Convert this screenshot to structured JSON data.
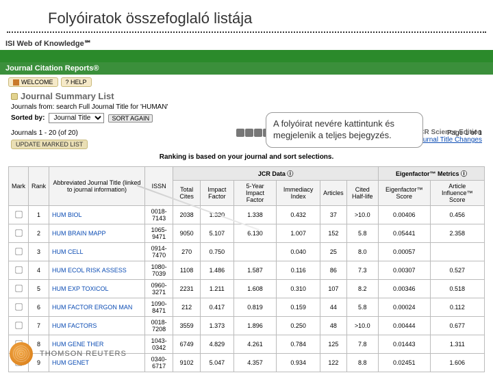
{
  "slide_title": "Folyóiratok összefoglaló listája",
  "isi_brand": "ISI Web of Knowledge℠",
  "jcr_brand": "Journal Citation Reports®",
  "toolbar": {
    "welcome": "WELCOME",
    "help": "? HELP"
  },
  "summary_title": "Journal Summary List",
  "journals_from": "Journals from: search Full Journal Title for 'HUMAN'",
  "sorted_by_label": "Sorted by:",
  "sorted_by_value": "Journal Title",
  "sort_again": "SORT AGAIN",
  "edition_line": "2010 JCR Science Edition",
  "journal_title_changes": "Journal Title Changes",
  "journals_count": "Journals 1 - 20 (of 20)",
  "page_label": "Page 1 of 1",
  "update_marked": "UPDATE MARKED LIST",
  "ranking_note": "Ranking is based on your journal and sort selections.",
  "callout_text": "A folyóirat nevére kattintunk és megjelenik a teljes bejegyzés.",
  "table": {
    "group_left": "",
    "group_jcr": "JCR Data ⓘ",
    "group_eigen": "Eigenfactor™ Metrics ⓘ",
    "columns": {
      "mark": "Mark",
      "rank": "Rank",
      "abbrev": "Abbreviated Journal Title (linked to journal information)",
      "issn": "ISSN",
      "total_cites": "Total Cites",
      "impact": "Impact Factor",
      "five_year": "5-Year Impact Factor",
      "immediacy": "Immediacy Index",
      "articles": "Articles",
      "half_life": "Cited Half-life",
      "eigen": "Eigenfactor™ Score",
      "influence": "Article Influence™ Score"
    },
    "rows": [
      {
        "rank": "1",
        "abbrev": "HUM BIOL",
        "issn": "0018-7143",
        "total": "2038",
        "impact": "1.320",
        "fyif": "1.338",
        "imm": "0.432",
        "art": "37",
        "hl": ">10.0",
        "eigen": "0.00406",
        "infl": "0.456"
      },
      {
        "rank": "2",
        "abbrev": "HUM BRAIN MAPP",
        "issn": "1065-9471",
        "total": "9050",
        "impact": "5.107",
        "fyif": "6.130",
        "imm": "1.007",
        "art": "152",
        "hl": "5.8",
        "eigen": "0.05441",
        "infl": "2.358"
      },
      {
        "rank": "3",
        "abbrev": "HUM CELL",
        "issn": "0914-7470",
        "total": "270",
        "impact": "0.750",
        "fyif": "",
        "imm": "0.040",
        "art": "25",
        "hl": "8.0",
        "eigen": "0.00057",
        "infl": ""
      },
      {
        "rank": "4",
        "abbrev": "HUM ECOL RISK ASSESS",
        "issn": "1080-7039",
        "total": "1108",
        "impact": "1.486",
        "fyif": "1.587",
        "imm": "0.116",
        "art": "86",
        "hl": "7.3",
        "eigen": "0.00307",
        "infl": "0.527"
      },
      {
        "rank": "5",
        "abbrev": "HUM EXP TOXICOL",
        "issn": "0960-3271",
        "total": "2231",
        "impact": "1.211",
        "fyif": "1.608",
        "imm": "0.310",
        "art": "107",
        "hl": "8.2",
        "eigen": "0.00346",
        "infl": "0.518"
      },
      {
        "rank": "6",
        "abbrev": "HUM FACTOR ERGON MAN",
        "issn": "1090-8471",
        "total": "212",
        "impact": "0.417",
        "fyif": "0.819",
        "imm": "0.159",
        "art": "44",
        "hl": "5.8",
        "eigen": "0.00024",
        "infl": "0.112"
      },
      {
        "rank": "7",
        "abbrev": "HUM FACTORS",
        "issn": "0018-7208",
        "total": "3559",
        "impact": "1.373",
        "fyif": "1.896",
        "imm": "0.250",
        "art": "48",
        "hl": ">10.0",
        "eigen": "0.00444",
        "infl": "0.677"
      },
      {
        "rank": "8",
        "abbrev": "HUM GENE THER",
        "issn": "1043-0342",
        "total": "6749",
        "impact": "4.829",
        "fyif": "4.261",
        "imm": "0.784",
        "art": "125",
        "hl": "7.8",
        "eigen": "0.01443",
        "infl": "1.311"
      },
      {
        "rank": "9",
        "abbrev": "HUM GENET",
        "issn": "0340-6717",
        "total": "9102",
        "impact": "5.047",
        "fyif": "4.357",
        "imm": "0.934",
        "art": "122",
        "hl": "8.8",
        "eigen": "0.02451",
        "infl": "1.606"
      }
    ]
  },
  "footer": {
    "brand": "THOMSON REUTERS"
  }
}
